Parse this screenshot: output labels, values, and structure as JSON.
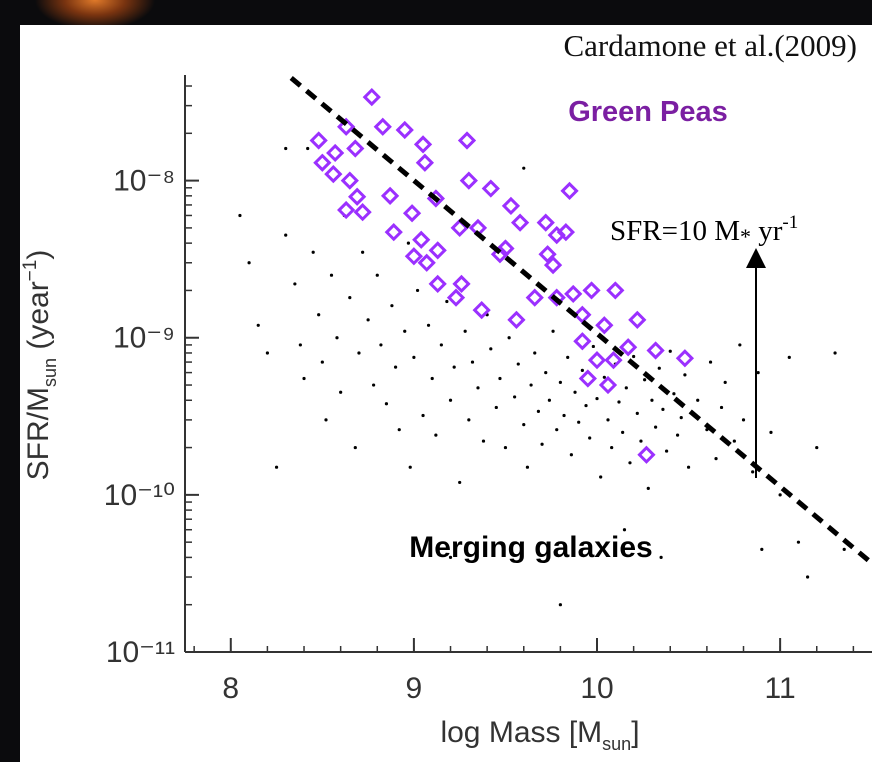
{
  "chart_data": {
    "type": "scatter",
    "source": "Cardamone et al.(2009)",
    "x_label": [
      "log Mass [M",
      "sun",
      "]"
    ],
    "y_label": [
      "SFR/M",
      "sun",
      " (year",
      "−1",
      ")"
    ],
    "annotation": [
      "SFR=10 M",
      "*",
      " yr",
      "-1"
    ],
    "y_scale": "log",
    "xlim": [
      7.75,
      11.6
    ],
    "ylim": [
      1e-11,
      4.7e-08
    ],
    "xticks": [
      8,
      9,
      10,
      11
    ],
    "yticks": [
      {
        "value": 1e-11,
        "label": "10⁻¹¹"
      },
      {
        "value": 1e-10,
        "label": "10⁻¹⁰"
      },
      {
        "value": 1e-09,
        "label": "10⁻⁹"
      },
      {
        "value": 1e-08,
        "label": "10⁻⁸"
      }
    ],
    "series": [
      {
        "name": "Merging galaxies",
        "color": "#000000",
        "marker": "dot",
        "x": [
          8.05,
          8.1,
          8.15,
          8.2,
          8.25,
          8.3,
          8.35,
          8.38,
          8.4,
          8.42,
          8.45,
          8.48,
          8.5,
          8.52,
          8.55,
          8.58,
          8.6,
          8.62,
          8.65,
          8.68,
          8.7,
          8.72,
          8.75,
          8.78,
          8.8,
          8.82,
          8.85,
          8.88,
          8.9,
          8.92,
          8.95,
          8.97,
          8.98,
          9.0,
          9.02,
          9.05,
          9.08,
          9.1,
          9.12,
          9.15,
          9.18,
          9.2,
          9.22,
          9.25,
          9.28,
          9.3,
          9.32,
          9.35,
          9.38,
          9.4,
          9.42,
          9.45,
          9.47,
          9.5,
          9.52,
          9.55,
          9.57,
          9.6,
          9.62,
          9.64,
          9.66,
          9.68,
          9.7,
          9.72,
          9.74,
          9.76,
          9.78,
          9.8,
          9.82,
          9.84,
          9.86,
          9.88,
          9.9,
          9.92,
          9.94,
          9.96,
          9.98,
          10.0,
          10.02,
          10.04,
          10.06,
          10.08,
          10.1,
          10.12,
          10.14,
          10.16,
          10.18,
          10.2,
          10.22,
          10.24,
          10.26,
          10.28,
          10.3,
          10.32,
          10.34,
          10.36,
          10.38,
          10.4,
          10.42,
          10.44,
          10.46,
          10.48,
          10.5,
          10.55,
          10.6,
          10.62,
          10.65,
          10.68,
          10.7,
          10.75,
          10.78,
          10.8,
          10.85,
          10.88,
          10.9,
          10.95,
          11.0,
          11.05,
          11.1,
          11.15,
          11.2,
          9.2,
          9.6,
          9.8,
          10.15,
          10.35,
          8.3,
          11.3,
          11.35
        ],
        "values": [
          6e-09,
          3e-09,
          1.2e-09,
          8e-10,
          1.5e-10,
          4.5e-09,
          2.2e-09,
          9e-10,
          5.5e-10,
          1.6e-08,
          3.5e-09,
          1.4e-09,
          7e-10,
          3e-10,
          2.5e-09,
          1e-09,
          4.5e-10,
          6e-09,
          1.8e-09,
          2e-10,
          8e-10,
          3.5e-09,
          1.3e-09,
          5e-10,
          2.5e-09,
          9e-10,
          3.8e-10,
          1.6e-09,
          6.5e-10,
          2.6e-10,
          1.1e-09,
          4e-09,
          1.5e-10,
          7.5e-10,
          2e-09,
          3.2e-10,
          1.2e-09,
          5.5e-10,
          2.4e-10,
          9e-10,
          1.7e-09,
          4e-10,
          6.5e-10,
          1.2e-10,
          1.1e-09,
          3e-10,
          7e-10,
          4.8e-10,
          2.2e-10,
          1.4e-09,
          8.5e-10,
          3.6e-10,
          5.5e-10,
          2e-10,
          1e-09,
          4.2e-10,
          6.8e-10,
          2.8e-10,
          1.5e-10,
          5e-10,
          8e-10,
          3.4e-10,
          2.1e-10,
          6e-10,
          4e-10,
          1.1e-09,
          2.6e-10,
          5.2e-10,
          3.2e-10,
          7.5e-10,
          1.8e-10,
          4.5e-10,
          2.9e-10,
          6.2e-10,
          3.7e-10,
          2.3e-10,
          8.8e-10,
          4.1e-10,
          1.3e-10,
          5.6e-10,
          3e-10,
          2e-10,
          6.8e-10,
          3.9e-10,
          2.5e-10,
          4.8e-10,
          1.6e-10,
          7.6e-10,
          3.3e-10,
          2.2e-10,
          5.4e-10,
          1.1e-10,
          4e-10,
          2.7e-10,
          6.4e-10,
          3.5e-10,
          1.9e-10,
          8.2e-10,
          4.4e-10,
          2.4e-10,
          3.1e-10,
          5.8e-10,
          1.5e-10,
          4e-10,
          2.6e-10,
          7e-10,
          1.7e-10,
          3.6e-10,
          5.2e-10,
          2.2e-10,
          9e-10,
          3e-10,
          1.4e-10,
          6e-10,
          4.5e-11,
          2.5e-10,
          1e-10,
          7.5e-10,
          5e-11,
          3e-11,
          2e-10,
          4e-11,
          1.2e-08,
          2e-11,
          6e-11,
          4e-11,
          1.6e-08,
          8e-10,
          4.5e-11
        ]
      },
      {
        "name": "Green Peas",
        "color": "#9b30ff",
        "marker": "diamond",
        "x": [
          8.77,
          8.63,
          8.68,
          8.83,
          8.95,
          9.05,
          9.06,
          9.29,
          9.3,
          9.42,
          9.53,
          9.85,
          8.5,
          8.48,
          8.57,
          8.56,
          8.65,
          8.69,
          8.63,
          8.72,
          8.87,
          8.99,
          9.12,
          9.25,
          9.35,
          9.47,
          9.58,
          9.72,
          9.78,
          9.73,
          9.66,
          9.78,
          9.87,
          9.97,
          10.1,
          10.04,
          9.92,
          10.22,
          10.32,
          10.0,
          10.09,
          9.95,
          10.17,
          10.27,
          10.48,
          10.06,
          9.23,
          9.37,
          9.56,
          9.26,
          9.13,
          9.04,
          8.89,
          9.0,
          9.13,
          9.07,
          9.83,
          9.76,
          9.92,
          9.5
        ],
        "values": [
          3.4e-08,
          2.2e-08,
          1.6e-08,
          2.2e-08,
          2.1e-08,
          1.7e-08,
          1.3e-08,
          1.8e-08,
          1e-08,
          8.9e-09,
          6.9e-09,
          8.6e-09,
          1.3e-08,
          1.8e-08,
          1.5e-08,
          1.1e-08,
          1e-08,
          7.9e-09,
          6.5e-09,
          6.3e-09,
          8e-09,
          6.2e-09,
          7.7e-09,
          5e-09,
          5e-09,
          3.4e-09,
          5.4e-09,
          5.4e-09,
          4.5e-09,
          3.4e-09,
          1.8e-09,
          1.8e-09,
          1.9e-09,
          2e-09,
          2e-09,
          1.2e-09,
          9.5e-10,
          1.3e-09,
          8.3e-10,
          7.2e-10,
          7.2e-10,
          5.5e-10,
          8.7e-10,
          1.8e-10,
          7.4e-10,
          5e-10,
          1.8e-09,
          1.5e-09,
          1.3e-09,
          2.2e-09,
          2.2e-09,
          4.2e-09,
          4.7e-09,
          3.3e-09,
          3.6e-09,
          3e-09,
          4.7e-09,
          2.9e-09,
          1.4e-09,
          3.7e-09
        ]
      },
      {
        "color": "#000000",
        "style": "dashed",
        "x": [
          8.33,
          11.51
        ],
        "values": [
          4.5e-08,
          3.6e-11
        ]
      }
    ]
  }
}
